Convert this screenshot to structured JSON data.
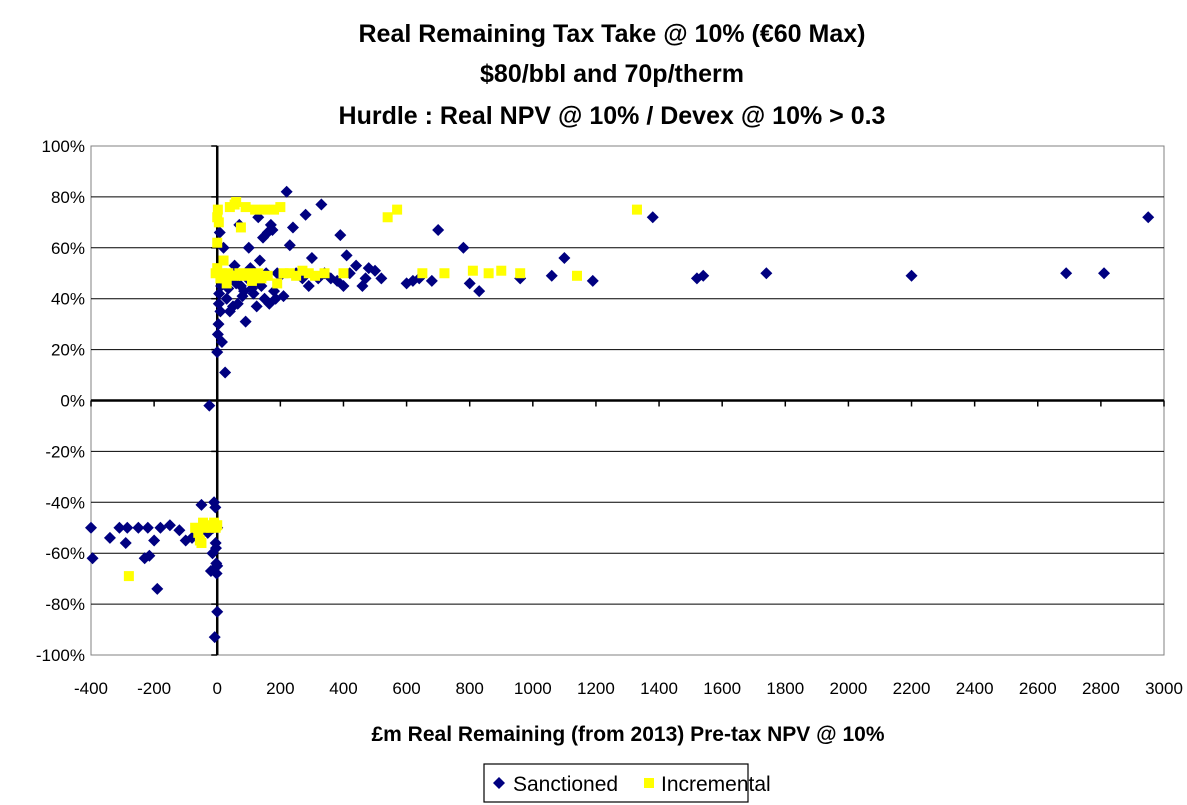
{
  "chart_data": {
    "type": "scatter",
    "title_lines": [
      "Real Remaining Tax Take @ 10% (€60 Max)",
      "$80/bbl and 70p/therm",
      "Hurdle : Real NPV @ 10% / Devex @ 10% > 0.3"
    ],
    "xlabel": "£m Real Remaining (from 2013) Pre-tax NPV @ 10%",
    "ylabel": "",
    "xlim": [
      -400,
      3000
    ],
    "ylim": [
      -100,
      100
    ],
    "x_ticks": [
      -400,
      -200,
      0,
      200,
      400,
      600,
      800,
      1000,
      1200,
      1400,
      1600,
      1800,
      2000,
      2200,
      2400,
      2600,
      2800,
      3000
    ],
    "x_tick_labels": [
      "-400",
      "-200",
      "0",
      "200",
      "400",
      "600",
      "800",
      "1000",
      "1200",
      "1400",
      "1600",
      "1800",
      "2000",
      "2200",
      "2400",
      "2600",
      "2800",
      "3000"
    ],
    "y_ticks": [
      -100,
      -80,
      -60,
      -40,
      -20,
      0,
      20,
      40,
      60,
      80,
      100
    ],
    "y_tick_labels": [
      "-100%",
      "-80%",
      "-60%",
      "-40%",
      "-20%",
      "0%",
      "20%",
      "40%",
      "60%",
      "80%",
      "100%"
    ],
    "grid": "horizontal",
    "legend_position": "bottom",
    "series": [
      {
        "name": "Sanctioned",
        "marker": "diamond",
        "color": "#000080",
        "points": [
          [
            -400,
            -50
          ],
          [
            -395,
            -62
          ],
          [
            -340,
            -54
          ],
          [
            -310,
            -50
          ],
          [
            -290,
            -56
          ],
          [
            -285,
            -50
          ],
          [
            -250,
            -50
          ],
          [
            -230,
            -62
          ],
          [
            -220,
            -50
          ],
          [
            -215,
            -61
          ],
          [
            -200,
            -55
          ],
          [
            -190,
            -74
          ],
          [
            -180,
            -50
          ],
          [
            -150,
            -49
          ],
          [
            -120,
            -51
          ],
          [
            -100,
            -55
          ],
          [
            -80,
            -54
          ],
          [
            -60,
            -54
          ],
          [
            -50,
            -41
          ],
          [
            -40,
            -50
          ],
          [
            -30,
            -52
          ],
          [
            -25,
            -2
          ],
          [
            -20,
            -67
          ],
          [
            -15,
            -60
          ],
          [
            -12,
            -50
          ],
          [
            -10,
            -40
          ],
          [
            -8,
            -93
          ],
          [
            -6,
            -42
          ],
          [
            -5,
            -56
          ],
          [
            -4,
            -58
          ],
          [
            -3,
            -64
          ],
          [
            -2,
            -68
          ],
          [
            0,
            -83
          ],
          [
            0,
            -65
          ],
          [
            0,
            -50
          ],
          [
            0,
            19
          ],
          [
            2,
            26
          ],
          [
            4,
            30
          ],
          [
            5,
            38
          ],
          [
            6,
            42
          ],
          [
            8,
            66
          ],
          [
            10,
            35
          ],
          [
            12,
            45
          ],
          [
            15,
            23
          ],
          [
            20,
            60
          ],
          [
            25,
            11
          ],
          [
            30,
            40
          ],
          [
            35,
            44
          ],
          [
            40,
            35
          ],
          [
            45,
            48
          ],
          [
            50,
            37
          ],
          [
            55,
            53
          ],
          [
            60,
            46
          ],
          [
            65,
            38
          ],
          [
            70,
            69
          ],
          [
            75,
            45
          ],
          [
            80,
            41
          ],
          [
            85,
            43
          ],
          [
            90,
            31
          ],
          [
            95,
            48
          ],
          [
            100,
            60
          ],
          [
            105,
            52
          ],
          [
            110,
            44
          ],
          [
            115,
            42
          ],
          [
            120,
            47
          ],
          [
            125,
            37
          ],
          [
            130,
            72
          ],
          [
            135,
            55
          ],
          [
            140,
            45
          ],
          [
            145,
            64
          ],
          [
            150,
            40
          ],
          [
            155,
            50
          ],
          [
            160,
            66
          ],
          [
            165,
            38
          ],
          [
            170,
            69
          ],
          [
            175,
            67
          ],
          [
            180,
            43
          ],
          [
            185,
            40
          ],
          [
            190,
            50
          ],
          [
            200,
            49
          ],
          [
            210,
            41
          ],
          [
            220,
            82
          ],
          [
            230,
            61
          ],
          [
            240,
            68
          ],
          [
            250,
            50
          ],
          [
            270,
            48
          ],
          [
            280,
            73
          ],
          [
            290,
            45
          ],
          [
            300,
            56
          ],
          [
            320,
            48
          ],
          [
            330,
            77
          ],
          [
            340,
            50
          ],
          [
            360,
            48
          ],
          [
            380,
            47
          ],
          [
            390,
            65
          ],
          [
            400,
            45
          ],
          [
            410,
            57
          ],
          [
            420,
            50
          ],
          [
            440,
            53
          ],
          [
            460,
            45
          ],
          [
            470,
            48
          ],
          [
            480,
            52
          ],
          [
            500,
            51
          ],
          [
            520,
            48
          ],
          [
            600,
            46
          ],
          [
            620,
            47
          ],
          [
            640,
            48
          ],
          [
            680,
            47
          ],
          [
            700,
            67
          ],
          [
            780,
            60
          ],
          [
            800,
            46
          ],
          [
            830,
            43
          ],
          [
            960,
            48
          ],
          [
            1060,
            49
          ],
          [
            1100,
            56
          ],
          [
            1190,
            47
          ],
          [
            1380,
            72
          ],
          [
            1520,
            48
          ],
          [
            1540,
            49
          ],
          [
            1740,
            50
          ],
          [
            2200,
            49
          ],
          [
            2690,
            50
          ],
          [
            2810,
            50
          ],
          [
            2950,
            72
          ]
        ]
      },
      {
        "name": "Incremental",
        "marker": "square",
        "color": "#ffff00",
        "points": [
          [
            -280,
            -69
          ],
          [
            -70,
            -50
          ],
          [
            -60,
            -52
          ],
          [
            -55,
            -55
          ],
          [
            -50,
            -56
          ],
          [
            -45,
            -48
          ],
          [
            -40,
            -50
          ],
          [
            -30,
            -49
          ],
          [
            -20,
            -50
          ],
          [
            -10,
            -48
          ],
          [
            -5,
            -50
          ],
          [
            0,
            -49
          ],
          [
            -5,
            50
          ],
          [
            0,
            52
          ],
          [
            0,
            62
          ],
          [
            0,
            72
          ],
          [
            2,
            75
          ],
          [
            5,
            70
          ],
          [
            10,
            48
          ],
          [
            15,
            50
          ],
          [
            20,
            55
          ],
          [
            25,
            48
          ],
          [
            30,
            46
          ],
          [
            35,
            50
          ],
          [
            40,
            76
          ],
          [
            50,
            49
          ],
          [
            55,
            77
          ],
          [
            60,
            78
          ],
          [
            70,
            50
          ],
          [
            75,
            68
          ],
          [
            80,
            49
          ],
          [
            90,
            76
          ],
          [
            100,
            50
          ],
          [
            110,
            47
          ],
          [
            120,
            75
          ],
          [
            130,
            50
          ],
          [
            140,
            48
          ],
          [
            150,
            75
          ],
          [
            160,
            49
          ],
          [
            180,
            75
          ],
          [
            190,
            46
          ],
          [
            200,
            76
          ],
          [
            210,
            50
          ],
          [
            230,
            50
          ],
          [
            250,
            49
          ],
          [
            270,
            51
          ],
          [
            290,
            50
          ],
          [
            310,
            49
          ],
          [
            340,
            50
          ],
          [
            400,
            50
          ],
          [
            540,
            72
          ],
          [
            570,
            75
          ],
          [
            650,
            50
          ],
          [
            720,
            50
          ],
          [
            810,
            51
          ],
          [
            860,
            50
          ],
          [
            900,
            51
          ],
          [
            960,
            50
          ],
          [
            1140,
            49
          ],
          [
            1330,
            75
          ]
        ]
      }
    ]
  }
}
